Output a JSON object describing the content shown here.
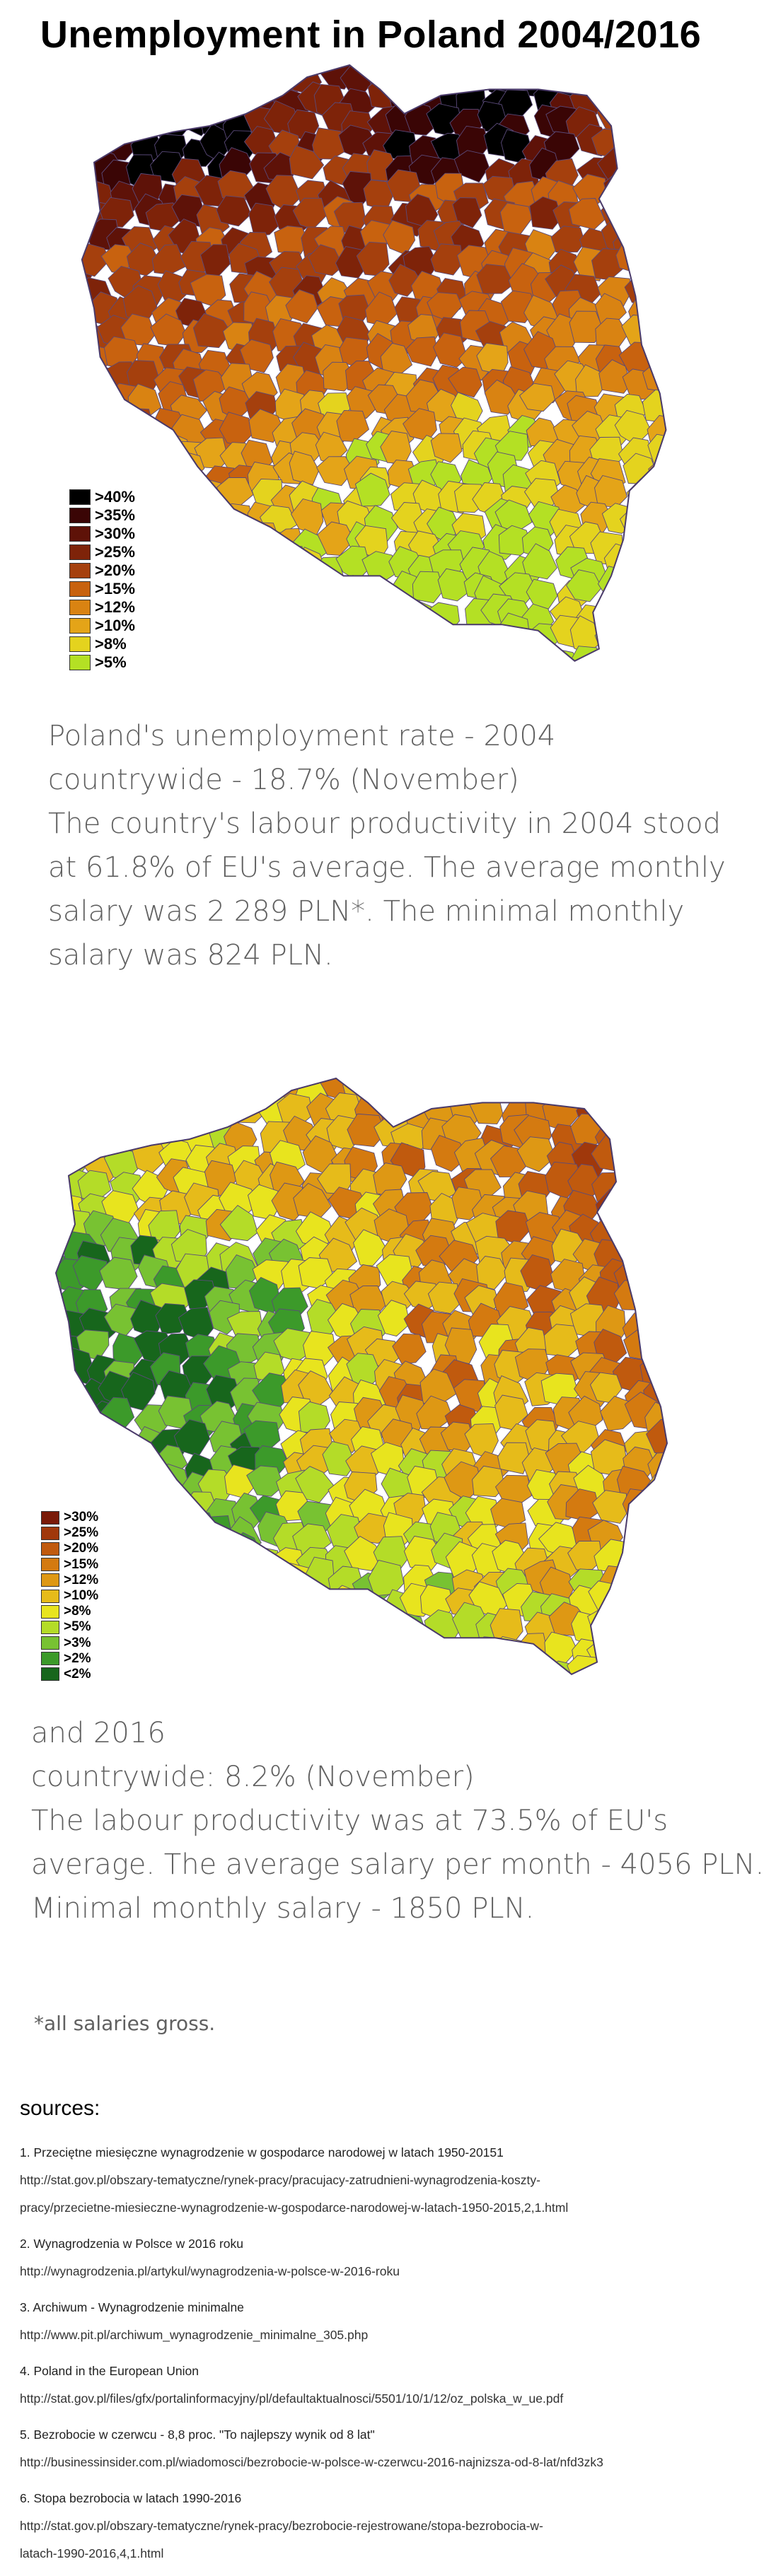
{
  "title": "Unemployment in Poland 2004/2016",
  "map_2004": {
    "legend": [
      {
        "label": ">40%",
        "color": "#000000"
      },
      {
        "label": ">35%",
        "color": "#3a0505"
      },
      {
        "label": ">30%",
        "color": "#5e1208"
      },
      {
        "label": ">25%",
        "color": "#7e2309"
      },
      {
        "label": ">20%",
        "color": "#a5400d"
      },
      {
        "label": ">15%",
        "color": "#c8620f"
      },
      {
        "label": ">12%",
        "color": "#d98312"
      },
      {
        "label": ">10%",
        "color": "#e4a418"
      },
      {
        "label": ">8%",
        "color": "#e4d31e"
      },
      {
        "label": ">5%",
        "color": "#b4e024"
      }
    ]
  },
  "text_2004": [
    "Poland's unemployment rate - 2004",
    "countrywide - 18.7% (November)",
    "The country's labour productivity in 2004 stood",
    "at 61.8% of EU's average. The average monthly",
    "salary was  2 289 PLN*. The minimal monthly",
    "salary was 824 PLN."
  ],
  "map_2016": {
    "legend": [
      {
        "label": ">30%",
        "color": "#7a1a08"
      },
      {
        "label": ">25%",
        "color": "#a0380b"
      },
      {
        "label": ">20%",
        "color": "#c05a0e"
      },
      {
        "label": ">15%",
        "color": "#d47a10"
      },
      {
        "label": ">12%",
        "color": "#de9814"
      },
      {
        "label": ">10%",
        "color": "#e6bb1a"
      },
      {
        "label": ">8%",
        "color": "#e8e41e"
      },
      {
        "label": ">5%",
        "color": "#b4dc28"
      },
      {
        "label": ">3%",
        "color": "#78c232"
      },
      {
        "label": ">2%",
        "color": "#3c9a2a"
      },
      {
        "label": "<2%",
        "color": "#17661c"
      }
    ]
  },
  "text_2016": [
    "and 2016",
    "countrywide: 8.2% (November)",
    "The labour productivity was at 73.5% of EU's",
    "average. The average salary per month - 4056 PLN.",
    "Minimal monthly salary - 1850 PLN."
  ],
  "note": "*all salaries gross.",
  "sources_title": "sources:",
  "sources": [
    {
      "title": "1. Przeciętne miesięczne wynagrodzenie w gospodarce narodowej w latach 1950-20151",
      "links": [
        "http://stat.gov.pl/obszary-tematyczne/rynek-pracy/pracujacy-zatrudnieni-wynagrodzenia-koszty-",
        "pracy/przecietne-miesieczne-wynagrodzenie-w-gospodarce-narodowej-w-latach-1950-2015,2,1.html"
      ]
    },
    {
      "title": "2. Wynagrodzenia w Polsce w 2016 roku",
      "links": [
        "http://wynagrodzenia.pl/artykul/wynagrodzenia-w-polsce-w-2016-roku"
      ]
    },
    {
      "title": "3. Archiwum - Wynagrodzenie minimalne",
      "links": [
        "http://www.pit.pl/archiwum_wynagrodzenie_minimalne_305.php"
      ]
    },
    {
      "title": "4. Poland in the European Union",
      "links": [
        "http://stat.gov.pl/files/gfx/portalinformacyjny/pl/defaultaktualnosci/5501/10/1/12/oz_polska_w_ue.pdf"
      ]
    },
    {
      "title": "5. Bezrobocie w czerwcu - 8,8 proc. \"To najlepszy wynik od 8 lat\"",
      "links": [
        "http://businessinsider.com.pl/wiadomosci/bezrobocie-w-polsce-w-czerwcu-2016-najnizsza-od-8-lat/nfd3zk3"
      ]
    },
    {
      "title": "6. Stopa bezrobocia w latach 1990-2016",
      "links": [
        "http://stat.gov.pl/obszary-tematyczne/rynek-pracy/bezrobocie-rejestrowane/stopa-bezrobocia-w-",
        "latach-1990-2016,4,1.html"
      ]
    }
  ]
}
